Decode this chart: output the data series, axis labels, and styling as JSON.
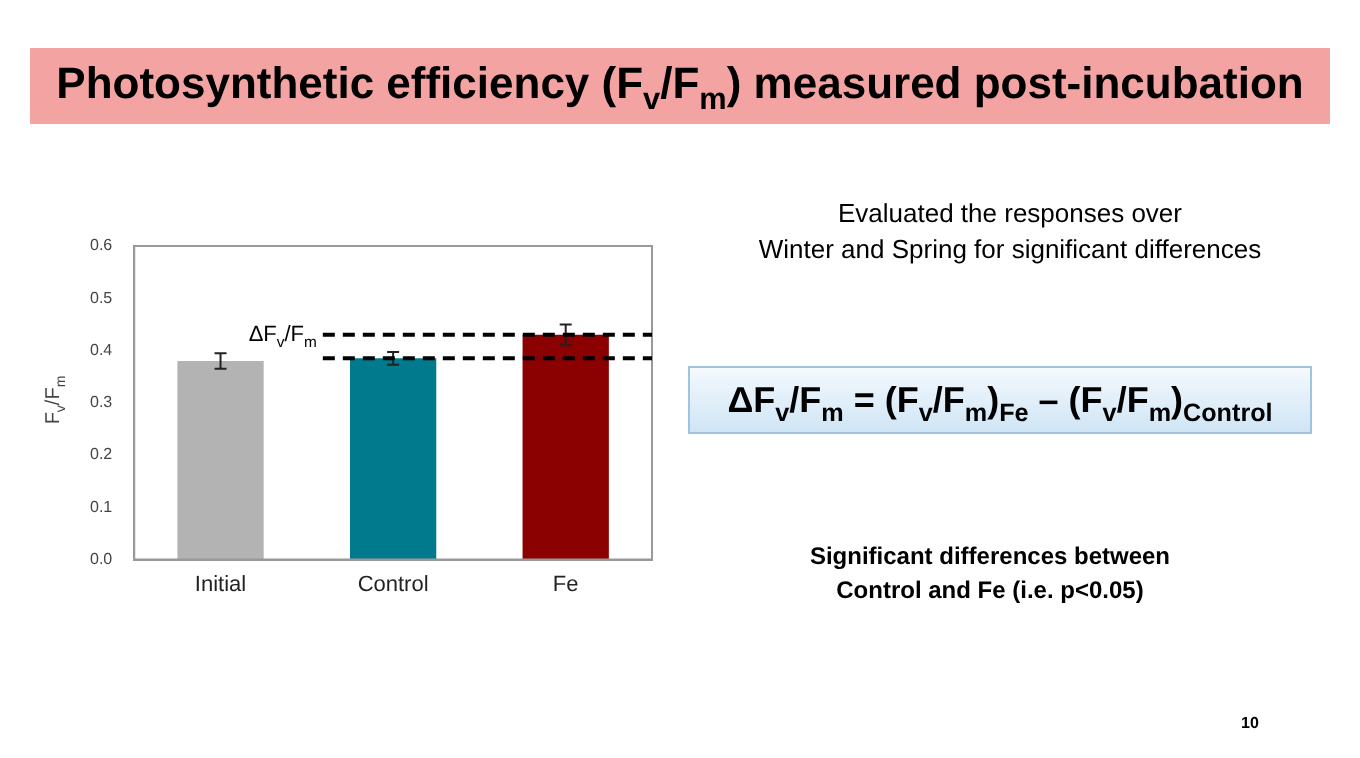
{
  "chart_data": {
    "type": "bar",
    "title": "Photosynthetic efficiency (F$_{v}$/F$_{m}$) measured post-incubation",
    "ylabel": "F$_{v}$/F$_{m}$",
    "categories": [
      "Initial",
      "Control",
      "Fe"
    ],
    "values": [
      0.38,
      0.385,
      0.43
    ],
    "colors": [
      "#b3b3b3",
      "#007a8c",
      "#8b0000"
    ],
    "errors": [
      0.015,
      0.012,
      0.02
    ],
    "ylim": [
      0,
      0.6
    ],
    "yticks": [
      {
        "value": 0,
        "label": "0.0"
      },
      {
        "value": 0.1,
        "label": "0.1"
      },
      {
        "value": 0.2,
        "label": "0.2"
      },
      {
        "value": 0.3,
        "label": "0.3"
      },
      {
        "value": 0.4,
        "label": "0.4"
      },
      {
        "value": 0.5,
        "label": "0.5"
      },
      {
        "value": 0.6,
        "label": "0.6"
      }
    ],
    "grid": false,
    "legend": false,
    "ref_lines": [
      {
        "axis": "y",
        "value": 0.43,
        "label": "ΔF$_{v}$/F$_{m}$",
        "line_style": "dashed",
        "color": "#000000"
      },
      {
        "axis": "y",
        "value": 0.385,
        "line_style": "dashed",
        "color": "#000000"
      }
    ],
    "annotations": [
      "Evaluated the responses over\nWinter and Spring for significant differences",
      "ΔF$_{v}$/F$_{m}$ = (F$_{v}$/F$_{m}$)$_{Fe}$ – (F$_{v}$/F$_{m}$)$_{Control}$",
      "Significant differences between\nControl and Fe (i.e. p<0.05)",
      "10"
    ]
  }
}
